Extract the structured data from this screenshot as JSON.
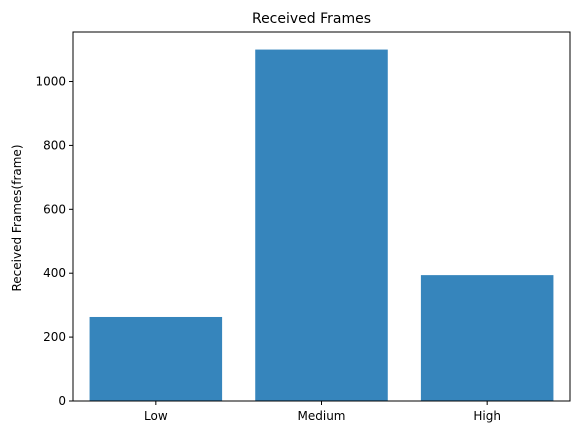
{
  "chart_data": {
    "type": "bar",
    "title": "Received Frames",
    "xlabel": "",
    "ylabel": "Received Frames(frame)",
    "categories": [
      "Low",
      "Medium",
      "High"
    ],
    "values": [
      263,
      1100,
      394
    ],
    "ylim": [
      0,
      1155
    ],
    "yticks": [
      0,
      200,
      400,
      600,
      800,
      1000
    ],
    "grid": false,
    "bar_color": "#3685bc"
  }
}
